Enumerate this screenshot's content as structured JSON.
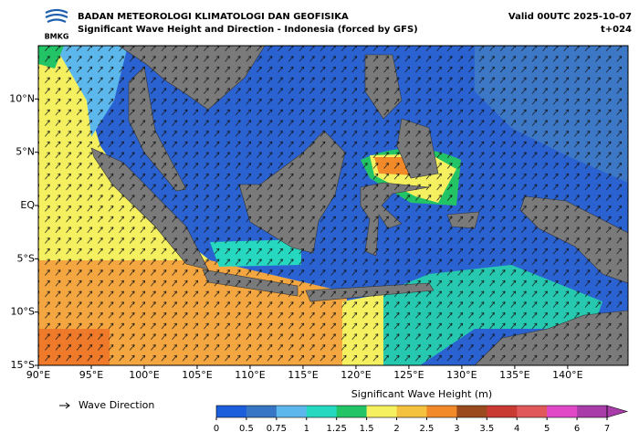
{
  "header": {
    "logo": "BMKG",
    "title": "BADAN METEOROLOGI KLIMATOLOGI DAN GEOFISIKA",
    "subtitle": "Significant Wave Height and Direction - Indonesia (forced by GFS)",
    "valid": "Valid 00UTC 2025-10-07",
    "lead": "t+024"
  },
  "map": {
    "xlim": [
      90,
      145.7
    ],
    "ylim": [
      -15,
      15
    ],
    "xticks": [
      {
        "value": 90,
        "label": "90°E"
      },
      {
        "value": 95,
        "label": "95°E"
      },
      {
        "value": 100,
        "label": "100°E"
      },
      {
        "value": 105,
        "label": "105°E"
      },
      {
        "value": 110,
        "label": "110°E"
      },
      {
        "value": 115,
        "label": "115°E"
      },
      {
        "value": 120,
        "label": "120°E"
      },
      {
        "value": 125,
        "label": "125°E"
      },
      {
        "value": 130,
        "label": "130°E"
      },
      {
        "value": 135,
        "label": "135°E"
      },
      {
        "value": 140,
        "label": "140°E"
      }
    ],
    "yticks": [
      {
        "value": -15,
        "label": "15°S"
      },
      {
        "value": -10,
        "label": "10°S"
      },
      {
        "value": -5,
        "label": "5°S"
      },
      {
        "value": 0,
        "label": "EQ"
      },
      {
        "value": 5,
        "label": "5°N"
      },
      {
        "value": 10,
        "label": "10°N"
      }
    ]
  },
  "legend": {
    "arrow_label": "Wave Direction"
  },
  "colorbar": {
    "label": "Significant Wave Height (m)",
    "ticks": [
      0,
      0.5,
      0.75,
      1,
      1.25,
      1.5,
      2,
      2.5,
      3,
      3.5,
      4,
      5,
      6,
      7
    ],
    "colors": [
      "#1c5fdc",
      "#3776c4",
      "#5cb8ec",
      "#26d8c0",
      "#22c466",
      "#f4f060",
      "#f4c23e",
      "#f28a2a",
      "#9a4a1c",
      "#c83a32",
      "#e0585a",
      "#e048c8",
      "#a83ca8"
    ]
  }
}
